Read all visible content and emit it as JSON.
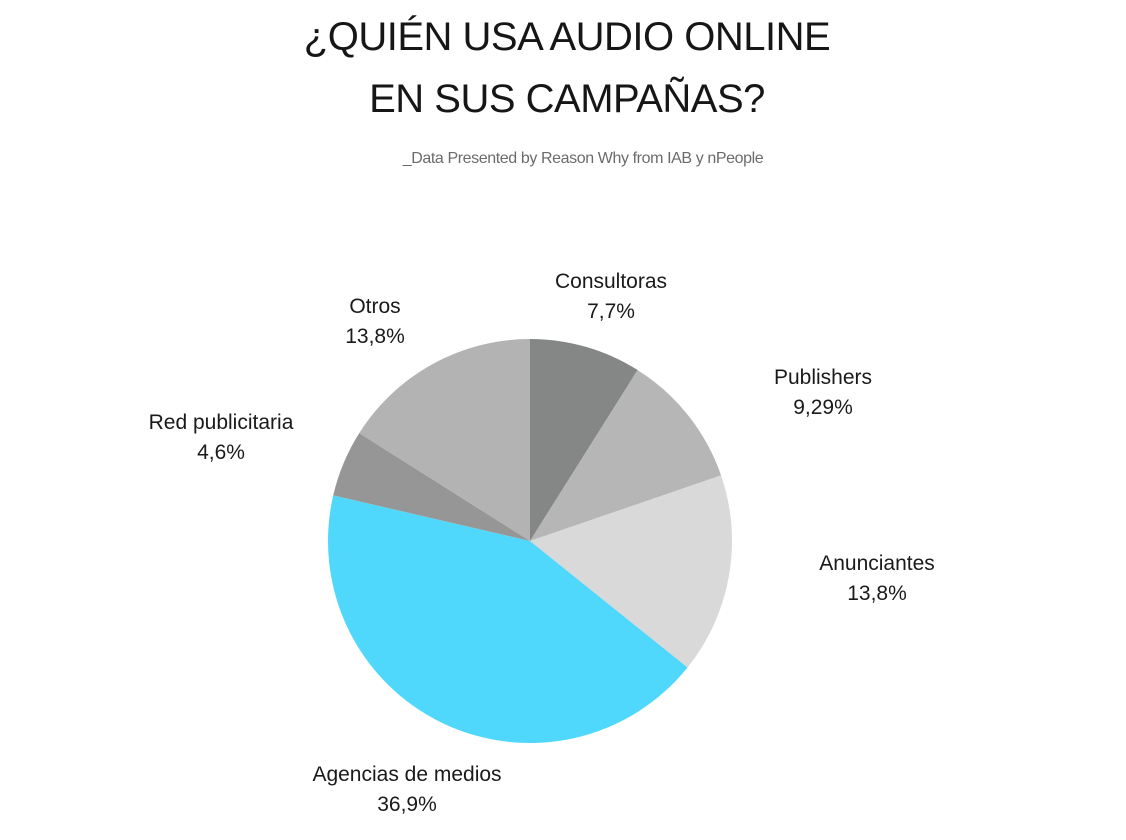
{
  "chart_data": {
    "type": "pie",
    "title": [
      "¿QUIÉN USA AUDIO ONLINE",
      "EN SUS CAMPAÑAS?"
    ],
    "subtitle": "_Data Presented by Reason Why from IAB y nPeople",
    "slices": [
      {
        "label": "Consultoras",
        "value_label": "7,7%",
        "value": 7.7,
        "color": "#858786"
      },
      {
        "label": "Publishers",
        "value_label": "9,29%",
        "value": 9.29,
        "color": "#b6b6b6"
      },
      {
        "label": "Anunciantes",
        "value_label": "13,8%",
        "value": 13.8,
        "color": "#d9d9d9"
      },
      {
        "label": "Agencias de medios",
        "value_label": "36,9%",
        "value": 36.9,
        "color": "#50d8fc"
      },
      {
        "label": "Red publicitaria",
        "value_label": "4,6%",
        "value": 4.6,
        "color": "#969696"
      },
      {
        "label": "Otros",
        "value_label": "13,8%",
        "value": 13.8,
        "color": "#b3b3b3"
      }
    ]
  }
}
